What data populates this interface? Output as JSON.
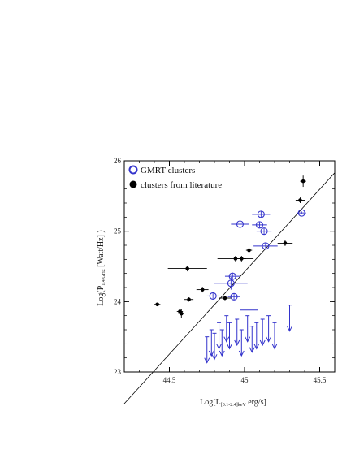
{
  "chart_data": {
    "type": "scatter",
    "xlabel": "Log[L[0.1-2.4]keV erg/s]",
    "ylabel": "Log(P1.4 GHz [Watt/Hz])",
    "xlim": [
      44.2,
      45.6
    ],
    "ylim": [
      23,
      26
    ],
    "xticks": [
      "44.5",
      "45",
      "45.5"
    ],
    "yticks": [
      "23",
      "24",
      "25",
      "26"
    ],
    "grid": false,
    "legend_position": "top-left",
    "colors": {
      "gmrt": "#3333cc",
      "literature": "#000000",
      "fit_line": "#000000"
    },
    "fit_line": {
      "x": [
        44.2,
        45.6
      ],
      "y": [
        22.55,
        25.83
      ]
    },
    "series": [
      {
        "name": "GMRT clusters",
        "marker": "open-circle",
        "points": [
          {
            "x": 44.97,
            "y": 25.1,
            "xerr": 0.06,
            "yerr": 0.04
          },
          {
            "x": 45.11,
            "y": 25.24,
            "xerr": 0.06,
            "yerr": 0.05
          },
          {
            "x": 45.1,
            "y": 25.09,
            "xerr": 0.05,
            "yerr": 0.04
          },
          {
            "x": 45.13,
            "y": 25.0,
            "xerr": 0.05,
            "yerr": 0.04
          },
          {
            "x": 45.14,
            "y": 24.79,
            "xerr": 0.08,
            "yerr": 0.05
          },
          {
            "x": 45.38,
            "y": 25.26,
            "xerr": 0.03,
            "yerr": 0.02
          },
          {
            "x": 44.92,
            "y": 24.36,
            "xerr": 0.05,
            "yerr": 0.05
          },
          {
            "x": 44.91,
            "y": 24.26,
            "xerr": 0.11,
            "yerr": 0.09
          },
          {
            "x": 44.79,
            "y": 24.08,
            "xerr": 0.04,
            "yerr": 0.04
          },
          {
            "x": 44.93,
            "y": 24.07,
            "xerr": 0.04,
            "yerr": 0.04
          }
        ],
        "upper_limits_x": [
          44.75,
          44.78,
          44.8,
          44.83,
          44.85,
          44.88,
          44.9,
          44.95,
          44.98,
          45.02,
          45.05,
          45.08,
          45.12,
          45.16,
          45.2,
          45.3
        ],
        "upper_limits_y": [
          23.5,
          23.6,
          23.55,
          23.7,
          23.6,
          23.8,
          23.7,
          23.75,
          23.6,
          23.8,
          23.65,
          23.7,
          23.75,
          23.8,
          23.7,
          23.95
        ],
        "upper_limit_bar": {
          "x": 45.03,
          "xerr": 0.06,
          "y": 23.88
        }
      },
      {
        "name": "clusters from literature",
        "marker": "filled-circle",
        "points": [
          {
            "x": 44.42,
            "y": 23.96,
            "xerr": 0.02,
            "yerr": 0.02
          },
          {
            "x": 44.57,
            "y": 23.86,
            "xerr": 0.02,
            "yerr": 0.04
          },
          {
            "x": 44.58,
            "y": 23.83,
            "xerr": 0.02,
            "yerr": 0.06
          },
          {
            "x": 44.63,
            "y": 24.03,
            "xerr": 0.03,
            "yerr": 0.03
          },
          {
            "x": 44.72,
            "y": 24.17,
            "xerr": 0.04,
            "yerr": 0.04
          },
          {
            "x": 44.62,
            "y": 24.47,
            "xerr": 0.13,
            "yerr": 0.04
          },
          {
            "x": 44.87,
            "y": 24.05,
            "xerr": 0.04,
            "yerr": 0.03
          },
          {
            "x": 44.94,
            "y": 24.61,
            "xerr": 0.12,
            "yerr": 0.04
          },
          {
            "x": 44.98,
            "y": 24.61,
            "xerr": 0.03,
            "yerr": 0.04
          },
          {
            "x": 45.03,
            "y": 24.73,
            "xerr": 0.02,
            "yerr": 0.02
          },
          {
            "x": 45.27,
            "y": 24.83,
            "xerr": 0.05,
            "yerr": 0.04
          },
          {
            "x": 45.37,
            "y": 25.44,
            "xerr": 0.03,
            "yerr": 0.04
          },
          {
            "x": 45.39,
            "y": 25.71,
            "xerr": 0.02,
            "yerr": 0.08
          }
        ]
      }
    ]
  },
  "legend": [
    {
      "label": "GMRT clusters"
    },
    {
      "label": "clusters from literature"
    }
  ],
  "axes": {
    "xlabel_main": "Log[L",
    "xlabel_sub": "[0.1-2.4]keV",
    "xlabel_tail": " erg/s]",
    "ylabel_main": "Log(P",
    "ylabel_sub": "1.4 GHz",
    "ylabel_tail": " [Watt/Hz] )"
  }
}
